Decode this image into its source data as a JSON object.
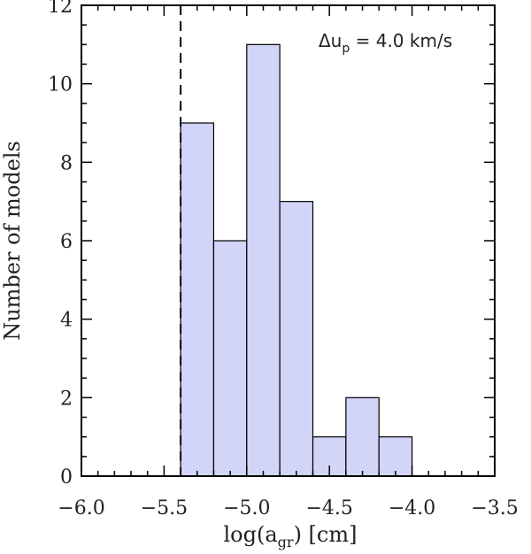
{
  "chart_data": {
    "type": "histogram",
    "bin_edges": [
      -5.4,
      -5.2,
      -5.0,
      -4.8,
      -4.6,
      -4.4,
      -4.2,
      -4.0
    ],
    "counts": [
      9,
      6,
      11,
      7,
      1,
      2,
      1
    ],
    "fill_color": "#d2d4f8",
    "edge_color": "#000000",
    "xlim": [
      -6.0,
      -3.5
    ],
    "ylim": [
      0,
      12
    ],
    "x_major_ticks": [
      -6.0,
      -5.5,
      -5.0,
      -4.5,
      -4.0,
      -3.5
    ],
    "x_tick_labels": [
      "−6.0",
      "−5.5",
      "−5.0",
      "−4.5",
      "−4.0",
      "−3.5"
    ],
    "y_major_ticks": [
      0,
      2,
      4,
      6,
      8,
      10,
      12
    ],
    "y_tick_labels": [
      "0",
      "2",
      "4",
      "6",
      "8",
      "10",
      "12"
    ],
    "xlabel": {
      "base": "log(a",
      "sub": "gr",
      "tail": ") [cm]"
    },
    "ylabel": "Number of models",
    "vline": {
      "x": -5.4,
      "style": "dashed"
    },
    "annotation": {
      "delta": "Δu",
      "sub": "p",
      "text": " = 4.0 km/s"
    },
    "grid": false
  }
}
